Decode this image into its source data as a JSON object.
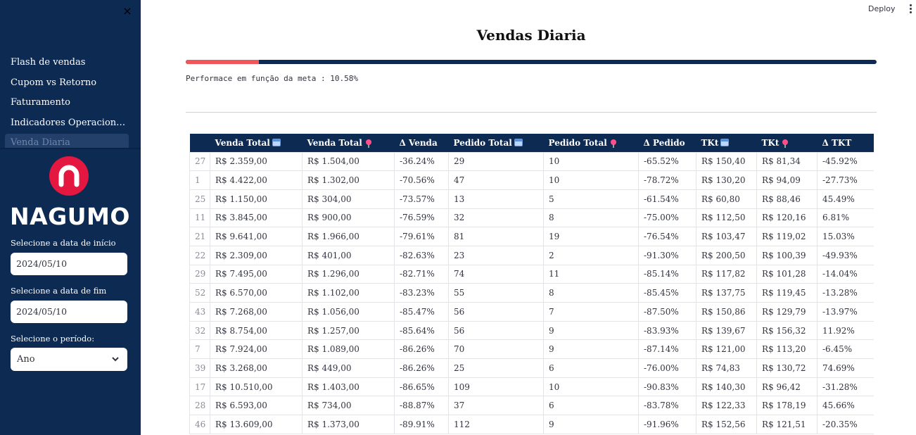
{
  "sidebar": {
    "close_label": "×",
    "nav_items": [
      {
        "label": "Flash de vendas"
      },
      {
        "label": "Cupom vs Retorno"
      },
      {
        "label": "Faturamento"
      },
      {
        "label": "Indicadores Operacionais ..."
      },
      {
        "label": "Venda Diaria"
      }
    ],
    "active_index": 4,
    "logo_text": "NAGUMO",
    "logo_color": "#e3173f",
    "start_date_label": "Selecione a data de início",
    "start_date_value": "2024/05/10",
    "end_date_label": "Selecione a data de fim",
    "end_date_value": "2024/05/10",
    "period_label": "Selecione o período:",
    "period_value": "Ano"
  },
  "header": {
    "deploy_label": "Deploy"
  },
  "main": {
    "title": "Vendas Diaria",
    "progress": {
      "value": 0.1058,
      "fill_color": "#f0565a",
      "track_color": "#0d2a52"
    },
    "performance_text": "Performace em função da meta : 10.58%"
  },
  "table": {
    "columns": [
      {
        "label": "",
        "icon": ""
      },
      {
        "label": "Venda Total",
        "icon": "calendar-icon"
      },
      {
        "label": "Venda Total",
        "icon": "pin-icon"
      },
      {
        "label": "Δ Venda",
        "icon": ""
      },
      {
        "label": "Pedido Total",
        "icon": "calendar-icon"
      },
      {
        "label": "Pedido Total",
        "icon": "pin-icon"
      },
      {
        "label": "Δ Pedido",
        "icon": ""
      },
      {
        "label": "TKt",
        "icon": "calendar-icon"
      },
      {
        "label": "TKt",
        "icon": "pin-icon"
      },
      {
        "label": "Δ TKT",
        "icon": ""
      }
    ],
    "rows": [
      [
        "27",
        "R$ 2.359,00",
        "R$ 1.504,00",
        "-36.24%",
        "29",
        "10",
        "-65.52%",
        "R$ 150,40",
        "R$ 81,34",
        "-45.92%"
      ],
      [
        "1",
        "R$ 4.422,00",
        "R$ 1.302,00",
        "-70.56%",
        "47",
        "10",
        "-78.72%",
        "R$ 130,20",
        "R$ 94,09",
        "-27.73%"
      ],
      [
        "25",
        "R$ 1.150,00",
        "R$ 304,00",
        "-73.57%",
        "13",
        "5",
        "-61.54%",
        "R$ 60,80",
        "R$ 88,46",
        "45.49%"
      ],
      [
        "11",
        "R$ 3.845,00",
        "R$ 900,00",
        "-76.59%",
        "32",
        "8",
        "-75.00%",
        "R$ 112,50",
        "R$ 120,16",
        "6.81%"
      ],
      [
        "21",
        "R$ 9.641,00",
        "R$ 1.966,00",
        "-79.61%",
        "81",
        "19",
        "-76.54%",
        "R$ 103,47",
        "R$ 119,02",
        "15.03%"
      ],
      [
        "22",
        "R$ 2.309,00",
        "R$ 401,00",
        "-82.63%",
        "23",
        "2",
        "-91.30%",
        "R$ 200,50",
        "R$ 100,39",
        "-49.93%"
      ],
      [
        "29",
        "R$ 7.495,00",
        "R$ 1.296,00",
        "-82.71%",
        "74",
        "11",
        "-85.14%",
        "R$ 117,82",
        "R$ 101,28",
        "-14.04%"
      ],
      [
        "52",
        "R$ 6.570,00",
        "R$ 1.102,00",
        "-83.23%",
        "55",
        "8",
        "-85.45%",
        "R$ 137,75",
        "R$ 119,45",
        "-13.28%"
      ],
      [
        "43",
        "R$ 7.268,00",
        "R$ 1.056,00",
        "-85.47%",
        "56",
        "7",
        "-87.50%",
        "R$ 150,86",
        "R$ 129,79",
        "-13.97%"
      ],
      [
        "32",
        "R$ 8.754,00",
        "R$ 1.257,00",
        "-85.64%",
        "56",
        "9",
        "-83.93%",
        "R$ 139,67",
        "R$ 156,32",
        "11.92%"
      ],
      [
        "7",
        "R$ 7.924,00",
        "R$ 1.089,00",
        "-86.26%",
        "70",
        "9",
        "-87.14%",
        "R$ 121,00",
        "R$ 113,20",
        "-6.45%"
      ],
      [
        "39",
        "R$ 3.268,00",
        "R$ 449,00",
        "-86.26%",
        "25",
        "6",
        "-76.00%",
        "R$ 74,83",
        "R$ 130,72",
        "74.69%"
      ],
      [
        "17",
        "R$ 10.510,00",
        "R$ 1.403,00",
        "-86.65%",
        "109",
        "10",
        "-90.83%",
        "R$ 140,30",
        "R$ 96,42",
        "-31.28%"
      ],
      [
        "28",
        "R$ 6.593,00",
        "R$ 734,00",
        "-88.87%",
        "37",
        "6",
        "-83.78%",
        "R$ 122,33",
        "R$ 178,19",
        "45.66%"
      ],
      [
        "46",
        "R$ 13.609,00",
        "R$ 1.373,00",
        "-89.91%",
        "112",
        "9",
        "-91.96%",
        "R$ 152,56",
        "R$ 121,51",
        "-20.35%"
      ]
    ]
  }
}
